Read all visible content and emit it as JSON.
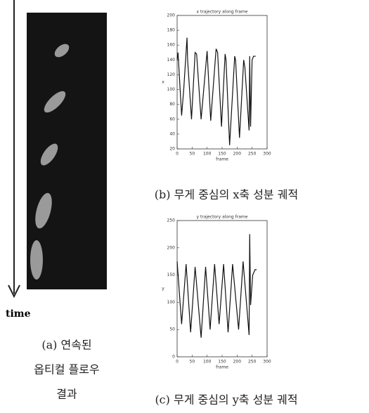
{
  "figure_a": {
    "time_label": "time",
    "caption": [
      "(a) 연속된",
      "옵티컬 플로우",
      "결과"
    ]
  },
  "chart_data": [
    {
      "type": "line",
      "title": "x trajectory along frame",
      "x_label": "frame",
      "y_label": "x",
      "caption": "(b) 무게 중심의 x축 성분 궤적",
      "x": [
        0,
        3,
        15,
        22,
        33,
        35,
        48,
        60,
        65,
        80,
        100,
        112,
        130,
        135,
        148,
        160,
        163,
        175,
        192,
        195,
        208,
        222,
        226,
        240,
        242,
        245,
        250,
        255,
        262
      ],
      "series": [
        {
          "name": "x",
          "color": "#111111",
          "values": [
            140,
            150,
            65,
            100,
            170,
            140,
            60,
            150,
            148,
            60,
            152,
            58,
            155,
            150,
            50,
            148,
            140,
            25,
            145,
            140,
            35,
            140,
            130,
            45,
            145,
            50,
            140,
            145,
            145
          ]
        }
      ],
      "xlim": [
        0,
        300
      ],
      "ylim": [
        20,
        200
      ],
      "xticks": [
        0,
        50,
        100,
        150,
        200,
        250,
        300
      ],
      "yticks": [
        20,
        40,
        60,
        80,
        100,
        120,
        140,
        160,
        180,
        200
      ]
    },
    {
      "type": "line",
      "title": "y trajectory along frame",
      "x_label": "frame",
      "y_label": "y",
      "caption": "(c) 무게 중심의 y축 성분 궤적",
      "x": [
        0,
        15,
        30,
        45,
        60,
        80,
        95,
        110,
        125,
        140,
        155,
        170,
        185,
        205,
        220,
        240,
        242,
        245,
        252,
        260,
        265
      ],
      "series": [
        {
          "name": "y",
          "color": "#111111",
          "values": [
            175,
            60,
            170,
            45,
            165,
            35,
            165,
            50,
            170,
            60,
            170,
            45,
            170,
            50,
            175,
            40,
            225,
            95,
            150,
            160,
            160
          ]
        }
      ],
      "xlim": [
        0,
        300
      ],
      "ylim": [
        0,
        250
      ],
      "xticks": [
        0,
        50,
        100,
        150,
        200,
        250,
        300
      ],
      "yticks": [
        0,
        50,
        100,
        150,
        200,
        250
      ]
    }
  ]
}
